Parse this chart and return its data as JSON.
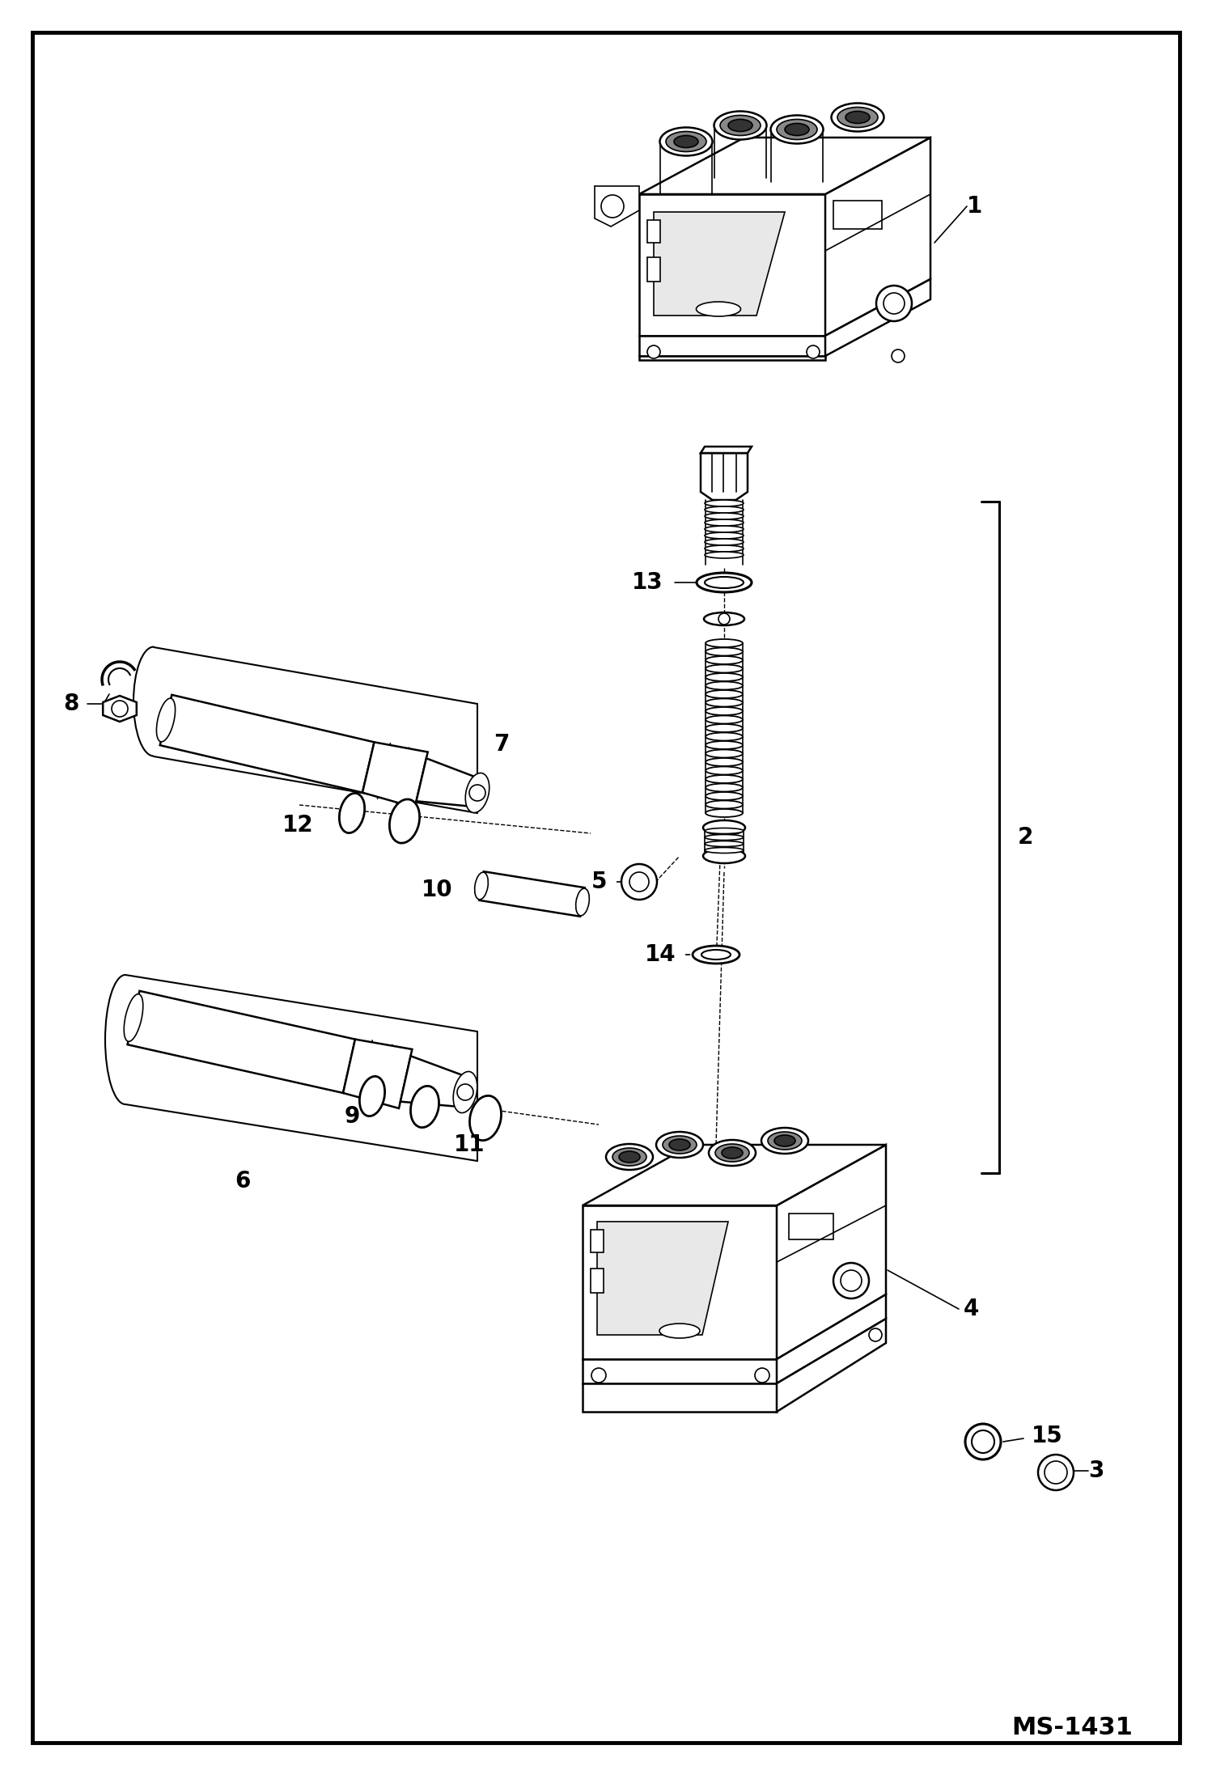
{
  "bg_color": "#ffffff",
  "line_color": "#000000",
  "fig_width": 14.98,
  "fig_height": 21.94,
  "dpi": 100,
  "watermark": "MS-1431",
  "border_lw": 3.5,
  "lw_main": 1.8,
  "lw_thin": 1.2,
  "lw_detail": 1.0,
  "fs_label": 20,
  "fs_watermark": 22
}
